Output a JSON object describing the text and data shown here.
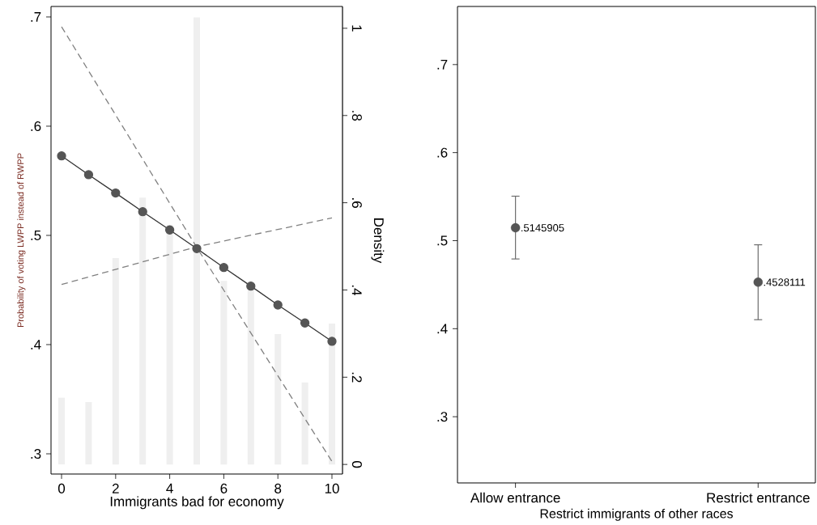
{
  "chart_data": [
    {
      "type": "line",
      "xlabel": "Immigrants bad for economy",
      "ylabel": "Probability of voting LWPP instead of RWPP",
      "y2label": "Density",
      "x": [
        0,
        1,
        2,
        3,
        4,
        5,
        6,
        7,
        8,
        9,
        10
      ],
      "xlim": [
        -0.39,
        10.39
      ],
      "xticks": [
        0,
        2,
        4,
        6,
        8,
        10
      ],
      "ylim": [
        0.2815,
        0.7096
      ],
      "yticks": [
        {
          "value": 0.3,
          "label": ".3"
        },
        {
          "value": 0.4,
          "label": ".4"
        },
        {
          "value": 0.5,
          "label": ".5"
        },
        {
          "value": 0.6,
          "label": ".6"
        },
        {
          "value": 0.7,
          "label": ".7"
        }
      ],
      "y2lim": [
        -0.022,
        1.05
      ],
      "y2ticks": [
        0,
        {
          "value": 0.2,
          "label": ".2"
        },
        {
          "value": 0.4,
          "label": ".4"
        },
        {
          "value": 0.6,
          "label": ".6"
        },
        {
          "value": 0.8,
          "label": ".8"
        },
        1
      ],
      "grid": false,
      "series": [
        {
          "type": "bar",
          "axis": "y2",
          "color": "#efefef",
          "values": [
            0.153,
            0.143,
            0.473,
            0.612,
            0.549,
            1.025,
            0.421,
            0.4,
            0.299,
            0.188,
            0.323
          ]
        },
        {
          "type": "line",
          "color": "#555555",
          "marker": "circle",
          "line_style": "solid",
          "values": [
            0.5728,
            0.5556,
            0.5388,
            0.5217,
            0.505,
            0.4879,
            0.4706,
            0.4536,
            0.4363,
            0.4198,
            0.403
          ]
        },
        {
          "type": "line",
          "color": "#808080",
          "line_style": "dashed",
          "x": [
            0,
            5,
            10
          ],
          "values": [
            0.691,
            0.489,
            0.293
          ]
        },
        {
          "type": "line",
          "color": "#808080",
          "line_style": "dashed",
          "x": [
            0,
            5,
            10
          ],
          "values": [
            0.455,
            0.4896,
            0.516
          ]
        }
      ]
    },
    {
      "type": "scatter",
      "xlabel": "Restrict immigrants of other races",
      "categories": [
        "Allow entrance",
        "Restrict entrance"
      ],
      "series": [
        {
          "color": "#555555",
          "marker": "circle",
          "values": [
            0.5145905,
            0.4528111
          ],
          "value_labels": [
            ".5145905",
            ".4528111"
          ],
          "errors": [
            [
              0.4792,
              0.5505
            ],
            [
              0.4102,
              0.4953
            ]
          ]
        }
      ],
      "ylim": [
        0.2248,
        0.766
      ],
      "yticks": [
        {
          "value": 0.3,
          "label": ".3"
        },
        {
          "value": 0.4,
          "label": ".4"
        },
        {
          "value": 0.5,
          "label": ".5"
        },
        {
          "value": 0.6,
          "label": ".6"
        },
        {
          "value": 0.7,
          "label": ".7"
        }
      ],
      "grid": false
    }
  ]
}
